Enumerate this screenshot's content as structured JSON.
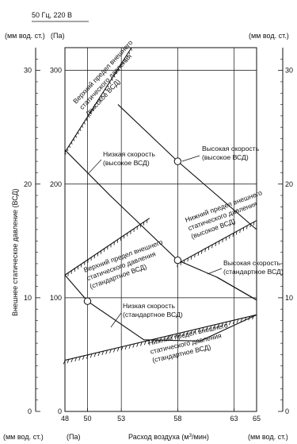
{
  "header": {
    "freq_voltage": "50 Гц, 220 В"
  },
  "axes": {
    "left_unit_mmwc": "(мм вод. ст.)",
    "left_unit_pa": "(Па)",
    "right_unit_mmwc": "(мм вод. ст.)",
    "bottom_left_unit_mmwc": "(мм вод. ст.)",
    "bottom_left_unit_pa": "(Па)",
    "bottom_right_unit_mmwc": "(мм вод. ст.)",
    "ylabel": "Внешнее статическое давление (ВСД)",
    "xlabel_prefix": "Расход воздуха (м",
    "xlabel_sup": "3",
    "xlabel_suffix": "/мин)"
  },
  "chart_data": {
    "type": "line",
    "title": "50 Гц, 220 В",
    "xlabel": "Расход воздуха (м3/мин)",
    "ylabel": "Внешнее статическое давление (ВСД)",
    "xlim": [
      48,
      65
    ],
    "ylim": [
      0,
      320
    ],
    "x_ticks": [
      "48",
      "50",
      "53",
      "58",
      "63",
      "65"
    ],
    "x_tick_values": [
      48,
      50,
      53,
      58,
      63,
      65
    ],
    "y_ticks_pa": [
      "0",
      "100",
      "200",
      "300"
    ],
    "y_ticks_mmwc": [
      "0",
      "10",
      "20",
      "30"
    ],
    "grid": true,
    "series": [
      {
        "name": "Высокая скорость (высокое ВСД)",
        "x": [
          52.7,
          58.0,
          65.0
        ],
        "y": [
          270,
          220,
          160
        ],
        "marker_x": 58.0,
        "marker_y": 220,
        "label_lines": [
          "Высокая скорость",
          "(высокое ВСД)"
        ]
      },
      {
        "name": "Низкая скорость (высокое ВСД)",
        "x": [
          48.0,
          52.0,
          58.0,
          61.5,
          65.0
        ],
        "y": [
          230,
          190,
          133,
          118,
          98
        ],
        "marker_x": 58.0,
        "marker_y": 133,
        "label_lines": [
          "Низкая скорость",
          "(высокое ВСД)"
        ]
      },
      {
        "name": "Высокая скорость (стандартное ВСД)",
        "x": [
          61.5,
          65.0
        ],
        "y": [
          118,
          98
        ],
        "label_lines": [
          "Высокая скорость",
          "(стандартное ВСД)"
        ]
      },
      {
        "name": "Низкая скорость (стандартное ВСД)",
        "x": [
          48.0,
          50.0,
          55.0,
          60.0,
          65.0
        ],
        "y": [
          120,
          97,
          63,
          62,
          85
        ],
        "marker_x": 50.0,
        "marker_y": 97,
        "label_lines": [
          "Низкая скорость",
          "(стандартное ВСД)"
        ]
      },
      {
        "name": "Верхний предел внешнего статического давления (высокое ВСД)",
        "x": [
          48.0,
          53.9
        ],
        "y": [
          228,
          320
        ],
        "hatched": true,
        "label_lines": [
          "Верхний предел внешнего",
          "статического давления",
          "(высокое ВСД)"
        ]
      },
      {
        "name": "Нижний предел внешнего статического давления (высокое ВСД)",
        "x": [
          58.0,
          65.0
        ],
        "y": [
          130,
          168
        ],
        "hatched": true,
        "label_lines": [
          "Нижний предел внешнего",
          "статического давления",
          "(высокое ВСД)"
        ]
      },
      {
        "name": "Верхний предел внешнего статического давления (стандартное ВСД)",
        "x": [
          48.0,
          55.5
        ],
        "y": [
          120,
          170
        ],
        "hatched": true,
        "label_lines": [
          "Верхний предел внешнего",
          "статического давления",
          "(стандартное ВСД)"
        ]
      },
      {
        "name": "Нижний предел внешнего статического давления (стандартное ВСД)",
        "x": [
          48.0,
          65.0
        ],
        "y": [
          45,
          85
        ],
        "hatched": true,
        "label_lines": [
          "Нижний предел внешнего",
          "статического давления",
          "(стандартное ВСД)"
        ]
      }
    ]
  }
}
